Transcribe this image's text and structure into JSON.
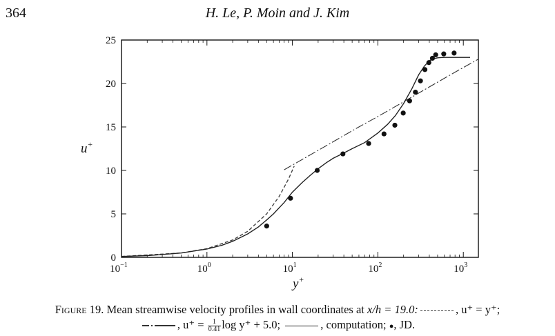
{
  "header": {
    "page_number": "364",
    "running_head": "H. Le, P. Moin and J. Kim"
  },
  "caption": {
    "label": "Figure 19.",
    "text_1": "Mean streamwise velocity profiles in wall coordinates at ",
    "condition": "x/h = 19.0:",
    "leg1_label": ", u⁺ = y⁺;",
    "leg2_prefix": ", u⁺ = ",
    "frac_num": "1",
    "frac_den": "0.41",
    "leg2_suffix": "log y⁺ + 5.0;",
    "leg3_label": ", computation;",
    "leg4_marker": "●",
    "leg4_label": ", JD."
  },
  "chart_data": {
    "type": "line",
    "xscale": "log",
    "xlim": [
      0.1,
      1500
    ],
    "ylim": [
      0,
      25
    ],
    "xlabel": "y⁺",
    "ylabel": "u⁺",
    "x_ticks": [
      {
        "value": 0.1,
        "base": "10",
        "exp": "−1"
      },
      {
        "value": 1,
        "base": "10",
        "exp": "0"
      },
      {
        "value": 10,
        "base": "10",
        "exp": "1"
      },
      {
        "value": 100,
        "base": "10",
        "exp": "2"
      },
      {
        "value": 1000,
        "base": "10",
        "exp": "3"
      }
    ],
    "y_ticks": [
      0,
      5,
      10,
      15,
      20,
      25
    ],
    "grid": false,
    "series": [
      {
        "style": "dashed",
        "x": [
          0.1,
          0.5,
          1,
          2,
          3,
          5,
          7,
          9,
          10.5
        ],
        "y": [
          0.1,
          0.5,
          1,
          2,
          3,
          5,
          7,
          9,
          10.5
        ]
      },
      {
        "style": "dashdot",
        "x": [
          8,
          15,
          30,
          60,
          100,
          200,
          400,
          800,
          1500
        ],
        "y": [
          10.07,
          11.6,
          13.3,
          15.0,
          16.2,
          17.9,
          19.6,
          21.3,
          22.8
        ]
      },
      {
        "style": "solid",
        "x": [
          0.1,
          0.2,
          0.5,
          1,
          1.5,
          2,
          3,
          4,
          5,
          6,
          8,
          10,
          13,
          16,
          20,
          25,
          30,
          40,
          50,
          70,
          100,
          130,
          160,
          200,
          250,
          300,
          350,
          400,
          450,
          500,
          600,
          800,
          1200
        ],
        "y": [
          0.1,
          0.2,
          0.5,
          0.95,
          1.4,
          1.85,
          2.7,
          3.5,
          4.3,
          5.0,
          6.3,
          7.5,
          8.6,
          9.4,
          10.2,
          10.9,
          11.4,
          12.0,
          12.5,
          13.2,
          14.3,
          15.3,
          16.3,
          17.7,
          19.4,
          21.0,
          22.0,
          22.6,
          22.85,
          22.95,
          23.0,
          23.0,
          23.0
        ]
      },
      {
        "style": "markers",
        "x": [
          5,
          9.5,
          19.5,
          39,
          78,
          118,
          158,
          198,
          235,
          275,
          315,
          355,
          395,
          435,
          475,
          590,
          780
        ],
        "y": [
          3.6,
          6.8,
          10.0,
          11.9,
          13.1,
          14.2,
          15.2,
          16.6,
          18.0,
          19.0,
          20.3,
          21.6,
          22.4,
          22.9,
          23.3,
          23.4,
          23.5
        ]
      }
    ]
  }
}
